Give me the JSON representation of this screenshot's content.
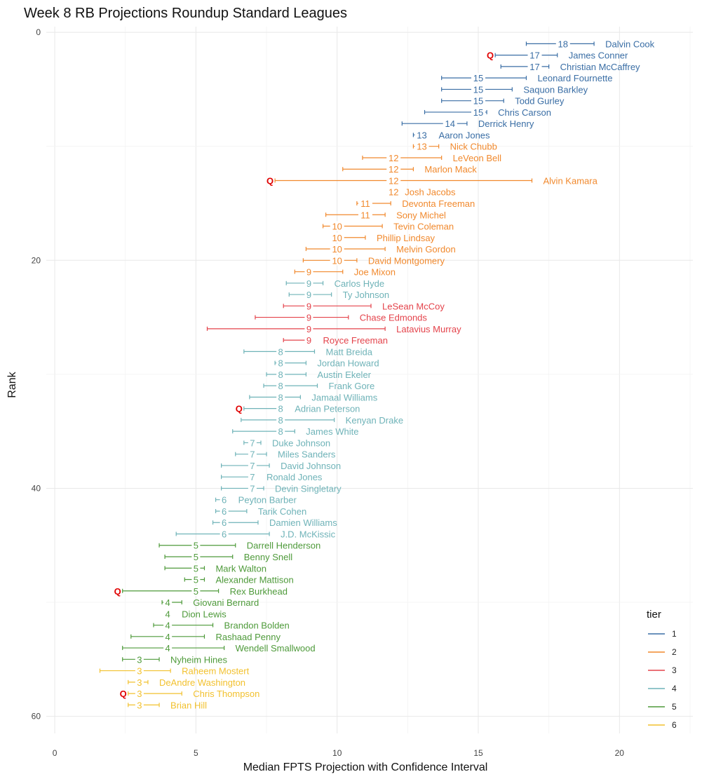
{
  "chart_data": {
    "type": "errorbar",
    "title": "Week 8 RB Projections Roundup Standard Leagues",
    "xlabel": "Median FPTS Projection with Confidence Interval",
    "ylabel": "Rank",
    "xlim": [
      -0.3,
      22.6
    ],
    "ylim": [
      -0.5,
      61.5
    ],
    "x_ticks": [
      0,
      5,
      10,
      15,
      20
    ],
    "y_ticks": [
      0,
      20,
      40,
      60
    ],
    "y_reversed": true,
    "grid": true,
    "legend": {
      "title": "tier",
      "position": "right",
      "entries": [
        "1",
        "2",
        "3",
        "4",
        "5",
        "6"
      ]
    },
    "tier_colors": {
      "1": "#3a6ea5",
      "2": "#f1892d",
      "3": "#e4434b",
      "4": "#6fb3b8",
      "5": "#4e9a3a",
      "6": "#f2c12e"
    },
    "q_color": "#e00000",
    "q_text": "Q",
    "points": [
      {
        "name": "Dalvin Cook",
        "tier": 1,
        "median": 18.0,
        "low": 16.7,
        "high": 19.1,
        "label": "18",
        "q": false
      },
      {
        "name": "James Conner",
        "tier": 1,
        "median": 17.0,
        "low": 15.6,
        "high": 17.8,
        "label": "17",
        "q": true
      },
      {
        "name": "Christian McCaffrey",
        "tier": 1,
        "median": 17.0,
        "low": 15.8,
        "high": 17.5,
        "label": "17",
        "q": false
      },
      {
        "name": "Leonard Fournette",
        "tier": 1,
        "median": 15.0,
        "low": 13.7,
        "high": 16.7,
        "label": "15",
        "q": false
      },
      {
        "name": "Saquon Barkley",
        "tier": 1,
        "median": 15.0,
        "low": 13.7,
        "high": 16.2,
        "label": "15",
        "q": false
      },
      {
        "name": "Todd Gurley",
        "tier": 1,
        "median": 15.0,
        "low": 13.7,
        "high": 15.9,
        "label": "15",
        "q": false
      },
      {
        "name": "Chris Carson",
        "tier": 1,
        "median": 15.0,
        "low": 13.1,
        "high": 15.3,
        "label": "15",
        "q": false
      },
      {
        "name": "Derrick Henry",
        "tier": 1,
        "median": 14.0,
        "low": 12.3,
        "high": 14.6,
        "label": "14",
        "q": false
      },
      {
        "name": "Aaron Jones",
        "tier": 1,
        "median": 13.0,
        "low": 12.7,
        "high": 13.2,
        "label": "13",
        "q": false
      },
      {
        "name": "Nick Chubb",
        "tier": 2,
        "median": 13.0,
        "low": 12.7,
        "high": 13.6,
        "label": "13",
        "q": false
      },
      {
        "name": "LeVeon Bell",
        "tier": 2,
        "median": 12.0,
        "low": 10.9,
        "high": 13.7,
        "label": "12",
        "q": false
      },
      {
        "name": "Marlon Mack",
        "tier": 2,
        "median": 12.0,
        "low": 10.2,
        "high": 12.7,
        "label": "12",
        "q": false
      },
      {
        "name": "Alvin Kamara",
        "tier": 2,
        "median": 12.0,
        "low": 7.8,
        "high": 16.9,
        "label": "12",
        "q": true
      },
      {
        "name": "Josh Jacobs",
        "tier": 2,
        "median": 12.0,
        "low": 11.8,
        "high": 12.0,
        "label": "12",
        "q": false
      },
      {
        "name": "Devonta Freeman",
        "tier": 2,
        "median": 11.0,
        "low": 10.7,
        "high": 11.9,
        "label": "11",
        "q": false
      },
      {
        "name": "Sony Michel",
        "tier": 2,
        "median": 11.0,
        "low": 9.6,
        "high": 11.7,
        "label": "11",
        "q": false
      },
      {
        "name": "Tevin Coleman",
        "tier": 2,
        "median": 10.0,
        "low": 9.5,
        "high": 11.6,
        "label": "10",
        "q": false
      },
      {
        "name": "Phillip Lindsay",
        "tier": 2,
        "median": 10.0,
        "low": 10.0,
        "high": 11.0,
        "label": "10",
        "q": false
      },
      {
        "name": "Melvin Gordon",
        "tier": 2,
        "median": 10.0,
        "low": 8.9,
        "high": 11.7,
        "label": "10",
        "q": false
      },
      {
        "name": "David Montgomery",
        "tier": 2,
        "median": 10.0,
        "low": 8.8,
        "high": 10.7,
        "label": "10",
        "q": false
      },
      {
        "name": "Joe Mixon",
        "tier": 2,
        "median": 9.0,
        "low": 8.5,
        "high": 10.2,
        "label": "9",
        "q": false
      },
      {
        "name": "Carlos Hyde",
        "tier": 4,
        "median": 9.0,
        "low": 8.2,
        "high": 9.5,
        "label": "9",
        "q": false
      },
      {
        "name": "Ty Johnson",
        "tier": 4,
        "median": 9.0,
        "low": 8.3,
        "high": 9.8,
        "label": "9",
        "q": false
      },
      {
        "name": "LeSean McCoy",
        "tier": 3,
        "median": 9.0,
        "low": 8.1,
        "high": 11.2,
        "label": "9",
        "q": false
      },
      {
        "name": "Chase Edmonds",
        "tier": 3,
        "median": 9.0,
        "low": 7.1,
        "high": 10.4,
        "label": "9",
        "q": false
      },
      {
        "name": "Latavius Murray",
        "tier": 3,
        "median": 9.0,
        "low": 5.4,
        "high": 11.7,
        "label": "9",
        "q": false
      },
      {
        "name": "Royce Freeman",
        "tier": 3,
        "median": 9.0,
        "low": 8.1,
        "high": 9.1,
        "label": "9",
        "q": false
      },
      {
        "name": "Matt Breida",
        "tier": 4,
        "median": 8.0,
        "low": 6.7,
        "high": 9.2,
        "label": "8",
        "q": false
      },
      {
        "name": "Jordan Howard",
        "tier": 4,
        "median": 8.0,
        "low": 7.8,
        "high": 8.9,
        "label": "8",
        "q": false
      },
      {
        "name": "Austin Ekeler",
        "tier": 4,
        "median": 8.0,
        "low": 7.5,
        "high": 8.9,
        "label": "8",
        "q": false
      },
      {
        "name": "Frank Gore",
        "tier": 4,
        "median": 8.0,
        "low": 7.4,
        "high": 9.3,
        "label": "8",
        "q": false
      },
      {
        "name": "Jamaal Williams",
        "tier": 4,
        "median": 8.0,
        "low": 6.9,
        "high": 8.7,
        "label": "8",
        "q": false
      },
      {
        "name": "Adrian Peterson",
        "tier": 4,
        "median": 8.0,
        "low": 6.7,
        "high": 8.1,
        "label": "8",
        "q": true
      },
      {
        "name": "Kenyan Drake",
        "tier": 4,
        "median": 8.0,
        "low": 6.6,
        "high": 9.9,
        "label": "8",
        "q": false
      },
      {
        "name": "James White",
        "tier": 4,
        "median": 8.0,
        "low": 6.3,
        "high": 8.5,
        "label": "8",
        "q": false
      },
      {
        "name": "Duke Johnson",
        "tier": 4,
        "median": 7.0,
        "low": 6.7,
        "high": 7.3,
        "label": "7",
        "q": false
      },
      {
        "name": "Miles Sanders",
        "tier": 4,
        "median": 7.0,
        "low": 6.4,
        "high": 7.5,
        "label": "7",
        "q": false
      },
      {
        "name": "David Johnson",
        "tier": 4,
        "median": 7.0,
        "low": 5.9,
        "high": 7.6,
        "label": "7",
        "q": false
      },
      {
        "name": "Ronald Jones",
        "tier": 4,
        "median": 7.0,
        "low": 5.9,
        "high": 7.1,
        "label": "7",
        "q": false
      },
      {
        "name": "Devin Singletary",
        "tier": 4,
        "median": 7.0,
        "low": 5.9,
        "high": 7.4,
        "label": "7",
        "q": false
      },
      {
        "name": "Peyton Barber",
        "tier": 4,
        "median": 6.0,
        "low": 5.7,
        "high": 6.1,
        "label": "6",
        "q": false
      },
      {
        "name": "Tarik Cohen",
        "tier": 4,
        "median": 6.0,
        "low": 5.7,
        "high": 6.8,
        "label": "6",
        "q": false
      },
      {
        "name": "Damien Williams",
        "tier": 4,
        "median": 6.0,
        "low": 5.6,
        "high": 7.2,
        "label": "6",
        "q": false
      },
      {
        "name": "J.D. McKissic",
        "tier": 4,
        "median": 6.0,
        "low": 4.3,
        "high": 7.6,
        "label": "6",
        "q": false
      },
      {
        "name": "Darrell Henderson",
        "tier": 5,
        "median": 5.0,
        "low": 3.7,
        "high": 6.4,
        "label": "5",
        "q": false
      },
      {
        "name": "Benny Snell",
        "tier": 5,
        "median": 5.0,
        "low": 3.9,
        "high": 6.3,
        "label": "5",
        "q": false
      },
      {
        "name": "Mark Walton",
        "tier": 5,
        "median": 5.0,
        "low": 3.9,
        "high": 5.3,
        "label": "5",
        "q": false
      },
      {
        "name": "Alexander Mattison",
        "tier": 5,
        "median": 5.0,
        "low": 4.6,
        "high": 5.3,
        "label": "5",
        "q": false
      },
      {
        "name": "Rex Burkhead",
        "tier": 5,
        "median": 5.0,
        "low": 2.4,
        "high": 5.8,
        "label": "5",
        "q": true
      },
      {
        "name": "Giovani Bernard",
        "tier": 5,
        "median": 4.0,
        "low": 3.8,
        "high": 4.5,
        "label": "4",
        "q": false
      },
      {
        "name": "Dion Lewis",
        "tier": 5,
        "median": 4.0,
        "low": 4.1,
        "high": 4.1,
        "label": "4",
        "q": false
      },
      {
        "name": "Brandon Bolden",
        "tier": 5,
        "median": 4.0,
        "low": 3.5,
        "high": 5.6,
        "label": "4",
        "q": false
      },
      {
        "name": "Rashaad Penny",
        "tier": 5,
        "median": 4.0,
        "low": 2.7,
        "high": 5.3,
        "label": "4",
        "q": false
      },
      {
        "name": "Wendell Smallwood",
        "tier": 5,
        "median": 4.0,
        "low": 2.4,
        "high": 6.0,
        "label": "4",
        "q": false
      },
      {
        "name": "Nyheim Hines",
        "tier": 5,
        "median": 3.0,
        "low": 2.4,
        "high": 3.7,
        "label": "3",
        "q": false
      },
      {
        "name": "Raheem Mostert",
        "tier": 6,
        "median": 3.0,
        "low": 1.6,
        "high": 4.1,
        "label": "3",
        "q": false
      },
      {
        "name": "DeAndre Washington",
        "tier": 6,
        "median": 3.0,
        "low": 2.6,
        "high": 3.3,
        "label": "3",
        "q": false
      },
      {
        "name": "Chris Thompson",
        "tier": 6,
        "median": 3.0,
        "low": 2.6,
        "high": 4.5,
        "label": "3",
        "q": true
      },
      {
        "name": "Brian Hill",
        "tier": 6,
        "median": 3.0,
        "low": 2.6,
        "high": 3.7,
        "label": "3",
        "q": false
      }
    ]
  }
}
